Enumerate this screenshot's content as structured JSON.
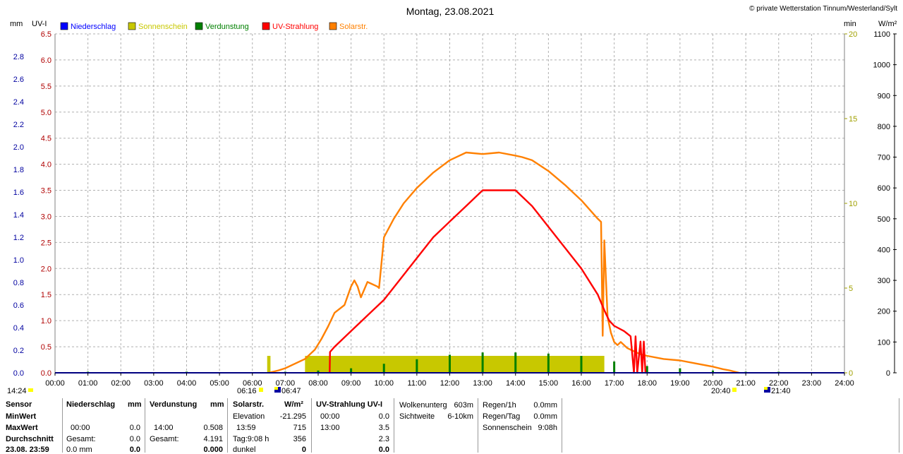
{
  "header": {
    "title": "Montag, 23.08.2021",
    "copyright": "© private Wetterstation Tinnum/Westerland/Sylt"
  },
  "units": {
    "mm": "mm",
    "uvi": "UV-I",
    "min": "min",
    "wm2": "W/m²"
  },
  "legend": [
    {
      "label": "Niederschlag",
      "color": "#0000ff"
    },
    {
      "label": "Sonnenschein",
      "color": "#c8c800"
    },
    {
      "label": "Verdunstung",
      "color": "#008000"
    },
    {
      "label": "UV-Strahlung",
      "color": "#ff0000"
    },
    {
      "label": "Solarstr.",
      "color": "#ff8000"
    }
  ],
  "colors": {
    "mm_axis": "#0000a0",
    "uvi_axis": "#b00000",
    "min_axis": "#a0a000",
    "wm2_axis": "#000000",
    "title_red": "#c00000",
    "uv": "#ff0000",
    "solar": "#ff8000",
    "sun": "#c8c800",
    "evap": "#008000",
    "grid": "#b0b0b0"
  },
  "chart_data": {
    "type": "line",
    "title": "Montag, 23.08.2021",
    "x_ticks": [
      "00:00",
      "01:00",
      "02:00",
      "03:00",
      "04:00",
      "05:00",
      "06:00",
      "07:00",
      "08:00",
      "09:00",
      "10:00",
      "11:00",
      "12:00",
      "13:00",
      "14:00",
      "15:00",
      "16:00",
      "17:00",
      "18:00",
      "19:00",
      "20:00",
      "21:00",
      "22:00",
      "23:00",
      "24:00"
    ],
    "x_range_hours": [
      0,
      24
    ],
    "axes": {
      "mm": {
        "ticks": [
          "0.0",
          "0.2",
          "0.4",
          "0.6",
          "0.8",
          "1.0",
          "1.2",
          "1.4",
          "1.6",
          "1.8",
          "2.0",
          "2.2",
          "2.4",
          "2.6",
          "2.8"
        ],
        "range": [
          0,
          3.0
        ]
      },
      "uvi": {
        "ticks": [
          "0.0",
          "0.5",
          "1.0",
          "1.5",
          "2.0",
          "2.5",
          "3.0",
          "3.5",
          "4.0",
          "4.5",
          "5.0",
          "5.5",
          "6.0",
          "6.5"
        ],
        "range": [
          0,
          6.5
        ]
      },
      "min": {
        "ticks": [
          "0",
          "5",
          "10",
          "15",
          "20"
        ],
        "range": [
          0,
          20
        ]
      },
      "wm2": {
        "ticks": [
          "0",
          "100",
          "200",
          "300",
          "400",
          "500",
          "600",
          "700",
          "800",
          "900",
          "1000",
          "1100"
        ],
        "range": [
          0,
          1100
        ]
      }
    },
    "series": [
      {
        "name": "Solarstr.",
        "axis": "wm2",
        "x": [
          6.5,
          6.8,
          7.0,
          7.3,
          7.6,
          7.9,
          8.1,
          8.3,
          8.5,
          8.8,
          9.0,
          9.1,
          9.2,
          9.3,
          9.5,
          9.6,
          9.8,
          9.85,
          10.0,
          10.3,
          10.6,
          11.0,
          11.5,
          12.0,
          12.5,
          13.0,
          13.5,
          14.0,
          14.2,
          14.5,
          15.0,
          15.5,
          16.0,
          16.5,
          16.6,
          16.65,
          16.7,
          16.75,
          16.8,
          16.9,
          17.0,
          17.1,
          17.2,
          17.4,
          17.6,
          17.8,
          18.0,
          18.5,
          19.0,
          19.5,
          20.0,
          20.3,
          20.5,
          20.8
        ],
        "y": [
          0,
          8,
          15,
          30,
          45,
          75,
          110,
          150,
          195,
          220,
          280,
          300,
          280,
          245,
          295,
          290,
          280,
          275,
          440,
          500,
          550,
          600,
          650,
          690,
          715,
          710,
          715,
          705,
          700,
          690,
          655,
          610,
          560,
          500,
          490,
          120,
          430,
          300,
          180,
          130,
          100,
          90,
          100,
          80,
          70,
          60,
          55,
          45,
          40,
          30,
          20,
          12,
          8,
          0
        ]
      },
      {
        "name": "UV-Strahlung",
        "axis": "uvi",
        "x": [
          8.35,
          8.36,
          8.5,
          9.0,
          9.5,
          10.0,
          10.5,
          11.0,
          11.5,
          12.0,
          12.5,
          13.0,
          13.5,
          14.0,
          14.5,
          15.0,
          15.5,
          16.0,
          16.5,
          16.7,
          16.85,
          17.0,
          17.3,
          17.5,
          17.6,
          17.65,
          17.7,
          17.8,
          17.85,
          17.9,
          17.95,
          17.96
        ],
        "y": [
          0,
          0.4,
          0.5,
          0.8,
          1.1,
          1.4,
          1.8,
          2.2,
          2.6,
          2.9,
          3.2,
          3.5,
          3.5,
          3.5,
          3.2,
          2.8,
          2.4,
          2.0,
          1.5,
          1.2,
          1.0,
          0.9,
          0.8,
          0.7,
          0.0,
          0.7,
          0.0,
          0.6,
          0.0,
          0.6,
          0.0,
          0.0
        ]
      },
      {
        "name": "Sonnenschein",
        "axis": "min",
        "bars": [
          {
            "from": 6.45,
            "to": 6.55,
            "value": 1.0
          },
          {
            "from": 7.6,
            "to": 16.7,
            "value": 1.0
          }
        ]
      },
      {
        "name": "Verdunstung",
        "axis": "mm",
        "x": [
          1,
          2,
          3,
          4,
          5,
          6,
          7,
          8,
          9,
          10,
          11,
          12,
          13,
          14,
          15,
          16,
          17,
          18,
          19,
          20,
          21,
          22,
          23
        ],
        "y": [
          0.01,
          0.005,
          0.005,
          0.01,
          0.005,
          0.005,
          0.01,
          0.02,
          0.04,
          0.08,
          0.12,
          0.16,
          0.18,
          0.18,
          0.17,
          0.15,
          0.1,
          0.06,
          0.04,
          0.02,
          0.01,
          0.01,
          0.005
        ]
      }
    ]
  },
  "markers": {
    "start_time": "14:24",
    "sunrise_dawn": "06:16",
    "sunrise": "06:47",
    "sunset": "20:40",
    "dusk": "21:40"
  },
  "stats": {
    "sensor": {
      "h": "Sensor",
      "min": "MinWert",
      "max": "MaxWert",
      "avg": "Durchschnitt",
      "last": "23.08. 23:59"
    },
    "niederschlag": {
      "h": "Niederschlag",
      "unit": "mm",
      "r2a": "00:00",
      "r2b": "0.0",
      "r3a": "Gesamt:",
      "r3b": "0.0",
      "r4a": "0.0 mm",
      "r4b": "0.0"
    },
    "verdunstung": {
      "h": "Verdunstung",
      "unit": "mm",
      "r2a": "14:00",
      "r2b": "0.508",
      "r3a": "Gesamt:",
      "r3b": "4.191",
      "r4b": "0.000"
    },
    "solar": {
      "h": "Solarstr.",
      "unit": "W/m²",
      "r1a": "Elevation",
      "r1b": "-21.295",
      "r2a": "13:59",
      "r2b": "715",
      "r3a": "Tag:9:08 h",
      "r3b": "356",
      "r4a": "dunkel",
      "r4b": "0"
    },
    "uv": {
      "h": "UV-Strahlung UV-I",
      "r1a": "00:00",
      "r1b": "0.0",
      "r2a": "13:00",
      "r2b": "3.5",
      "r3b": "2.3",
      "r4b": "0.0"
    },
    "wolken": {
      "a1": "Wolkenunterg",
      "b1": "603m",
      "a2": "Sichtweite",
      "b2": "6-10km"
    },
    "regen": {
      "a1": "Regen/1h",
      "b1": "0.0mm",
      "a2": "Regen/Tag",
      "b2": "0.0mm",
      "a3": "Sonnenschein",
      "b3": "9:08h"
    }
  }
}
